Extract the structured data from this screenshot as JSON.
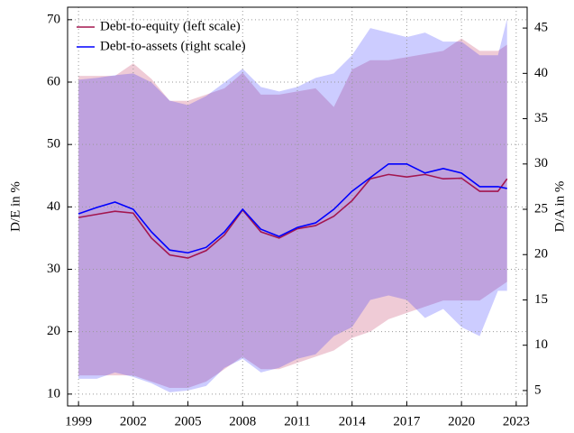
{
  "chart_data": {
    "type": "line",
    "x": [
      1999,
      2000,
      2001,
      2002,
      2003,
      2004,
      2005,
      2006,
      2007,
      2008,
      2009,
      2010,
      2011,
      2012,
      2013,
      2014,
      2015,
      2016,
      2017,
      2018,
      2019,
      2020,
      2021,
      2022,
      2022.5
    ],
    "xlim": [
      1998.4,
      2023.6
    ],
    "xticks": [
      1999,
      2002,
      2005,
      2008,
      2011,
      2014,
      2017,
      2020,
      2023
    ],
    "ylim": [
      8.1,
      72
    ],
    "yticks": [
      10,
      20,
      30,
      40,
      50,
      60,
      70
    ],
    "y2lim": [
      3.3,
      47.3
    ],
    "y2ticks": [
      5,
      10,
      15,
      20,
      25,
      30,
      35,
      40,
      45
    ],
    "ylabel": "D/E in %",
    "y2label": "D/A in %",
    "grid": true,
    "legend": "top-left",
    "series": [
      {
        "name": "Debt-to-equity (left scale)",
        "color": "#a3164f",
        "band_color": "#c0305a",
        "axis": "y",
        "values": [
          38.3,
          38.8,
          39.3,
          39,
          35,
          32.3,
          31.8,
          33,
          35.5,
          39.5,
          36,
          35,
          36.5,
          37,
          38.5,
          41,
          44.5,
          45.2,
          44.8,
          45.2,
          44.5,
          44.6,
          42.5,
          42.5,
          44.5
        ],
        "upper": [
          61,
          61,
          61,
          63,
          60.5,
          57,
          57,
          58,
          59,
          61.5,
          58,
          58,
          58.5,
          59,
          56,
          62,
          63.5,
          63.5,
          64,
          64.5,
          65,
          67,
          65,
          65,
          66
        ],
        "lower": [
          13,
          13,
          13,
          13,
          12,
          11,
          11,
          12,
          14,
          16,
          14,
          14,
          15,
          16,
          17,
          19,
          20,
          22,
          23,
          24,
          25,
          25,
          25,
          27,
          28
        ]
      },
      {
        "name": "Debt-to-assets (right scale)",
        "color": "#0000ff",
        "band_color": "#0000ff",
        "axis": "y2",
        "values": [
          24.5,
          25.2,
          25.8,
          25,
          22.5,
          20.5,
          20.2,
          20.8,
          22.5,
          25,
          22.8,
          22,
          23,
          23.5,
          25,
          27,
          28.5,
          30,
          30,
          29,
          29.5,
          29,
          27.5,
          27.5,
          27.3
        ],
        "upper": [
          39.3,
          39.5,
          39.8,
          40,
          39,
          37,
          36.5,
          37.5,
          39,
          40.5,
          38.5,
          38,
          38.5,
          39.5,
          40,
          42,
          45,
          44.5,
          44,
          44.5,
          43.5,
          43.5,
          42,
          42,
          46
        ],
        "lower": [
          6.3,
          6.3,
          7,
          6.5,
          5.8,
          4.8,
          5,
          5.5,
          7.5,
          8.5,
          7,
          7.5,
          8.5,
          9,
          11,
          12,
          15,
          15.5,
          15,
          13,
          14,
          12,
          11,
          16,
          16
        ]
      }
    ]
  }
}
